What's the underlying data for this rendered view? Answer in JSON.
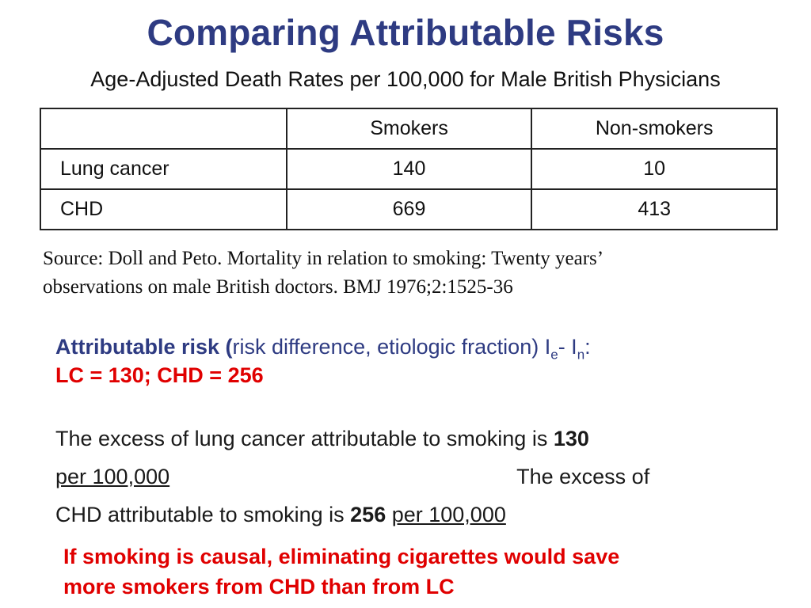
{
  "slide": {
    "title": "Comparing Attributable Risks",
    "subtitle": "Age-Adjusted Death Rates per 100,000 for Male British Physicians"
  },
  "table": {
    "headers": [
      "",
      "Smokers",
      "Non-smokers"
    ],
    "rows": [
      {
        "label": "Lung cancer",
        "smokers": "140",
        "nonsmokers": "10"
      },
      {
        "label": "CHD",
        "smokers": "669",
        "nonsmokers": "413"
      }
    ]
  },
  "source": {
    "line1": "Source: Doll and Peto. Mortality in relation to smoking: Twenty years’",
    "line2": "observations on male British doctors. BMJ 1976;2:1525-36"
  },
  "attributable_risk": {
    "label_bold": "Attributable risk (",
    "label_rest": "risk difference, etiologic fraction) I",
    "sub_e": "e",
    "dash": "- I",
    "sub_n": "n",
    "colon": ":",
    "result": "LC = 130; CHD = 256"
  },
  "excess": {
    "lc_text": "The excess of lung cancer attributable to smoking is ",
    "lc_value": "130",
    "lc_unit": "per 100,000",
    "chd_intro": "The excess of",
    "chd_text": "CHD attributable to smoking is ",
    "chd_value": "256",
    "chd_unit": "per 100,000"
  },
  "conclusion": {
    "line1": "If smoking is causal, eliminating cigarettes would save",
    "line2": "more smokers from CHD than from LC"
  },
  "colors": {
    "title": "#2e3b82",
    "emphasis": "#e00000"
  }
}
